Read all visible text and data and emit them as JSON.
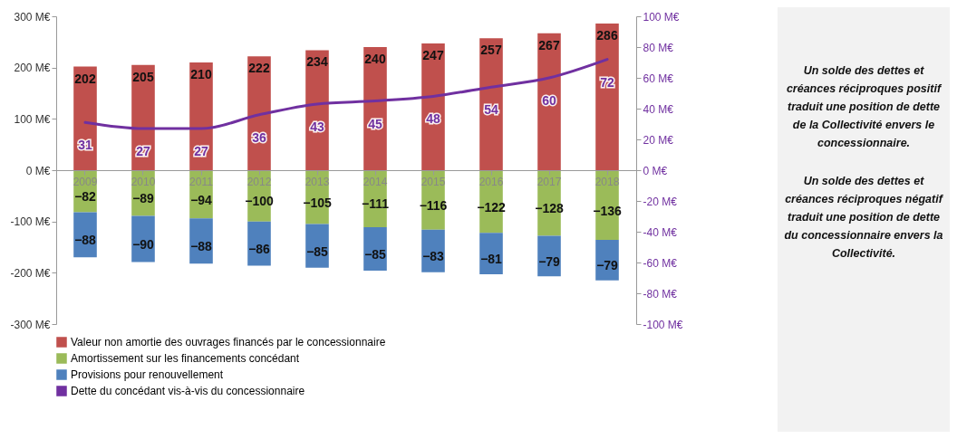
{
  "chart_data": {
    "type": "bar",
    "stacked": true,
    "categories": [
      "2009",
      "2010",
      "2011",
      "2012",
      "2013",
      "2014",
      "2015",
      "2016",
      "2017",
      "2018"
    ],
    "series": [
      {
        "name": "Valeur non amortie des ouvrages financés par le concessionnaire",
        "color": "#c0504d",
        "values": [
          202,
          205,
          210,
          222,
          234,
          240,
          247,
          257,
          267,
          286
        ]
      },
      {
        "name": "Amortissement sur les financements concédant",
        "color": "#9bbb59",
        "values": [
          -82,
          -89,
          -94,
          -100,
          -105,
          -111,
          -116,
          -122,
          -128,
          -136
        ]
      },
      {
        "name": "Provisions pour renouvellement",
        "color": "#4f81bd",
        "values": [
          -88,
          -90,
          -88,
          -86,
          -85,
          -85,
          -83,
          -81,
          -79,
          -79
        ]
      },
      {
        "name": "Dette du concédant vis-à-vis du concessionnaire",
        "type": "line",
        "axis": "y2",
        "color": "#7030a0",
        "values": [
          31,
          27,
          27,
          36,
          43,
          45,
          48,
          54,
          60,
          72
        ]
      }
    ],
    "ylim": [
      -300,
      300
    ],
    "yticks": [
      {
        "value": -300,
        "label": "-300 M€"
      },
      {
        "value": -200,
        "label": "-200 M€"
      },
      {
        "value": -100,
        "label": "-100 M€"
      },
      {
        "value": 0,
        "label": "0 M€"
      },
      {
        "value": 100,
        "label": "100 M€"
      },
      {
        "value": 200,
        "label": "200 M€"
      },
      {
        "value": 300,
        "label": "300 M€"
      }
    ],
    "y2lim": [
      -100,
      100
    ],
    "y2ticks": [
      {
        "value": -100,
        "label": "-100 M€"
      },
      {
        "value": -80,
        "label": "-80 M€"
      },
      {
        "value": -60,
        "label": "-60 M€"
      },
      {
        "value": -40,
        "label": "-40 M€"
      },
      {
        "value": -20,
        "label": "-20 M€"
      },
      {
        "value": 0,
        "label": "0 M€"
      },
      {
        "value": 20,
        "label": "20 M€"
      },
      {
        "value": 40,
        "label": "40 M€"
      },
      {
        "value": 60,
        "label": "60 M€"
      },
      {
        "value": 80,
        "label": "80 M€"
      },
      {
        "value": 100,
        "label": "100 M€"
      }
    ],
    "data_labels": true,
    "legend": "bottom",
    "grid": false,
    "line_style": "solid",
    "marker": "none",
    "annotations": [
      "Un solde des dettes et créances réciproques positif traduit une position de dette de la Collectivité envers le concessionnaire.",
      "Un solde des dettes et créances réciproques négatif traduit une position de dette du concessionnaire envers la Collectivité."
    ]
  }
}
